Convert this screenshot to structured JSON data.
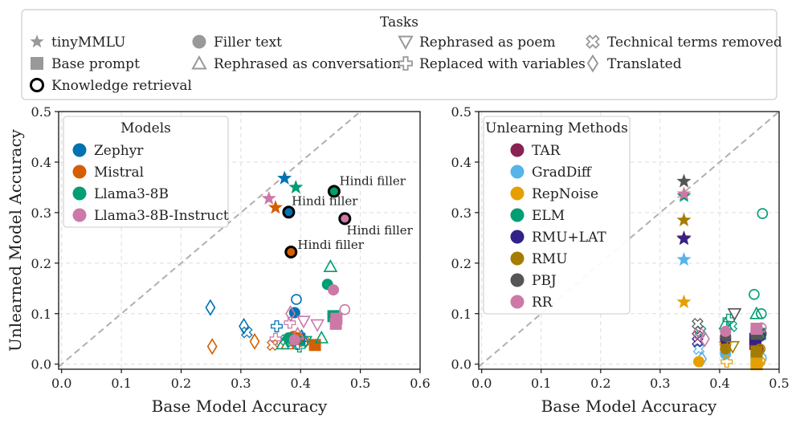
{
  "tasks_legend": {
    "title": "Tasks",
    "items": [
      {
        "label": "tinyMMLU",
        "marker": "star"
      },
      {
        "label": "Base prompt",
        "marker": "square"
      },
      {
        "label": "Knowledge retrieval",
        "marker": "ring"
      },
      {
        "label": "Filler text",
        "marker": "circle"
      },
      {
        "label": "Rephrased as conversation",
        "marker": "triangle-up"
      },
      {
        "label": "Rephrased as poem",
        "marker": "triangle-down"
      },
      {
        "label": "Replaced with variables",
        "marker": "plus"
      },
      {
        "label": "Technical terms removed",
        "marker": "x"
      },
      {
        "label": "Translated",
        "marker": "diamond"
      }
    ]
  },
  "chart_data": [
    {
      "type": "scatter",
      "xlabel": "Base Model Accuracy",
      "ylabel": "Unlearned Model Accuracy",
      "xlim": [
        -0.005,
        0.6
      ],
      "ylim": [
        -0.01,
        0.5
      ],
      "xticks": [
        "0.0",
        "0.1",
        "0.2",
        "0.3",
        "0.4",
        "0.5",
        "0.6"
      ],
      "yticks": [
        "0.0",
        "0.1",
        "0.2",
        "0.3",
        "0.4",
        "0.5"
      ],
      "grid": true,
      "diagonal": true,
      "legend": {
        "title": "Models",
        "position": "top-left",
        "items": [
          {
            "name": "Zephyr",
            "color": "#0072b2"
          },
          {
            "name": "Mistral",
            "color": "#d55e00"
          },
          {
            "name": "Llama3-8B",
            "color": "#009e73"
          },
          {
            "name": "Llama3-8B-Instruct",
            "color": "#cc79a7"
          }
        ]
      },
      "annotations": [
        {
          "text": "Hindi filler",
          "x": 0.465,
          "y": 0.355
        },
        {
          "text": "Hindi filler",
          "x": 0.385,
          "y": 0.315
        },
        {
          "text": "Hindi filler",
          "x": 0.477,
          "y": 0.257
        },
        {
          "text": "Hindi filler",
          "x": 0.395,
          "y": 0.228
        }
      ],
      "series": [
        {
          "name": "Zephyr",
          "color": "#0072b2",
          "points": [
            {
              "x": 0.373,
              "y": 0.368,
              "m": "star"
            },
            {
              "x": 0.38,
              "y": 0.301,
              "m": "ring"
            },
            {
              "x": 0.39,
              "y": 0.102,
              "m": "circle"
            },
            {
              "x": 0.393,
              "y": 0.128,
              "m": "circle-open"
            },
            {
              "x": 0.249,
              "y": 0.112,
              "m": "diamond"
            },
            {
              "x": 0.305,
              "y": 0.075,
              "m": "diamond"
            },
            {
              "x": 0.31,
              "y": 0.063,
              "m": "x"
            },
            {
              "x": 0.36,
              "y": 0.075,
              "m": "plus"
            },
            {
              "x": 0.385,
              "y": 0.045,
              "m": "x"
            },
            {
              "x": 0.395,
              "y": 0.04,
              "m": "plus"
            },
            {
              "x": 0.402,
              "y": 0.055,
              "m": "triangle-up"
            },
            {
              "x": 0.398,
              "y": 0.05,
              "m": "square"
            }
          ]
        },
        {
          "name": "Mistral",
          "color": "#d55e00",
          "points": [
            {
              "x": 0.358,
              "y": 0.31,
              "m": "star"
            },
            {
              "x": 0.384,
              "y": 0.222,
              "m": "ring"
            },
            {
              "x": 0.252,
              "y": 0.035,
              "m": "diamond"
            },
            {
              "x": 0.323,
              "y": 0.045,
              "m": "diamond"
            },
            {
              "x": 0.353,
              "y": 0.038,
              "m": "x"
            },
            {
              "x": 0.378,
              "y": 0.04,
              "m": "triangle-up"
            },
            {
              "x": 0.388,
              "y": 0.055,
              "m": "circle"
            },
            {
              "x": 0.396,
              "y": 0.052,
              "m": "circle"
            },
            {
              "x": 0.405,
              "y": 0.045,
              "m": "x"
            },
            {
              "x": 0.424,
              "y": 0.038,
              "m": "square"
            }
          ]
        },
        {
          "name": "Llama3-8B",
          "color": "#009e73",
          "points": [
            {
              "x": 0.392,
              "y": 0.35,
              "m": "star"
            },
            {
              "x": 0.456,
              "y": 0.342,
              "m": "ring"
            },
            {
              "x": 0.45,
              "y": 0.193,
              "m": "triangle-up"
            },
            {
              "x": 0.445,
              "y": 0.158,
              "m": "circle"
            },
            {
              "x": 0.455,
              "y": 0.095,
              "m": "square"
            },
            {
              "x": 0.435,
              "y": 0.052,
              "m": "triangle-up"
            },
            {
              "x": 0.38,
              "y": 0.052,
              "m": "circle"
            },
            {
              "x": 0.37,
              "y": 0.04,
              "m": "triangle-up"
            },
            {
              "x": 0.375,
              "y": 0.048,
              "m": "x"
            },
            {
              "x": 0.398,
              "y": 0.035,
              "m": "plus"
            },
            {
              "x": 0.408,
              "y": 0.045,
              "m": "triangle-down"
            }
          ]
        },
        {
          "name": "Llama3-8B-Instruct",
          "color": "#cc79a7",
          "points": [
            {
              "x": 0.347,
              "y": 0.328,
              "m": "star"
            },
            {
              "x": 0.474,
              "y": 0.288,
              "m": "ring"
            },
            {
              "x": 0.455,
              "y": 0.147,
              "m": "circle"
            },
            {
              "x": 0.474,
              "y": 0.108,
              "m": "circle-open"
            },
            {
              "x": 0.459,
              "y": 0.08,
              "m": "square"
            },
            {
              "x": 0.46,
              "y": 0.09,
              "m": "square"
            },
            {
              "x": 0.383,
              "y": 0.1,
              "m": "diamond"
            },
            {
              "x": 0.405,
              "y": 0.085,
              "m": "triangle-down"
            },
            {
              "x": 0.428,
              "y": 0.078,
              "m": "triangle-down"
            },
            {
              "x": 0.382,
              "y": 0.082,
              "m": "plus"
            },
            {
              "x": 0.395,
              "y": 0.06,
              "m": "triangle-up"
            },
            {
              "x": 0.39,
              "y": 0.048,
              "m": "circle"
            },
            {
              "x": 0.358,
              "y": 0.05,
              "m": "plus"
            }
          ]
        }
      ]
    },
    {
      "type": "scatter",
      "xlabel": "Base Model Accuracy",
      "ylabel": "",
      "xlim": [
        -0.005,
        0.5
      ],
      "ylim": [
        -0.01,
        0.5
      ],
      "xticks": [
        "0.0",
        "0.1",
        "0.2",
        "0.3",
        "0.4",
        "0.5"
      ],
      "yticks": [
        "0.0",
        "0.1",
        "0.2",
        "0.3",
        "0.4",
        "0.5"
      ],
      "grid": true,
      "diagonal": true,
      "legend": {
        "title": "Unlearning Methods",
        "position": "top-left",
        "items": [
          {
            "name": "TAR",
            "color": "#882255"
          },
          {
            "name": "GradDiff",
            "color": "#56b4e9"
          },
          {
            "name": "RepNoise",
            "color": "#e69f00"
          },
          {
            "name": "ELM",
            "color": "#009e73"
          },
          {
            "name": "RMU+LAT",
            "color": "#332288"
          },
          {
            "name": "RMU",
            "color": "#a67c00"
          },
          {
            "name": "PBJ",
            "color": "#555555"
          },
          {
            "name": "RR",
            "color": "#cc79a7"
          }
        ]
      },
      "series": [
        {
          "name": "TAR",
          "color": "#882255",
          "points": [
            {
              "x": 0.34,
              "y": 0.25,
              "m": "star"
            },
            {
              "x": 0.41,
              "y": 0.04,
              "m": "circle"
            },
            {
              "x": 0.46,
              "y": 0.04,
              "m": "square"
            },
            {
              "x": 0.465,
              "y": 0.03,
              "m": "circle-open"
            },
            {
              "x": 0.363,
              "y": 0.055,
              "m": "x"
            }
          ]
        },
        {
          "name": "GradDiff",
          "color": "#56b4e9",
          "points": [
            {
              "x": 0.34,
              "y": 0.207,
              "m": "star"
            },
            {
              "x": 0.41,
              "y": 0.02,
              "m": "circle"
            },
            {
              "x": 0.462,
              "y": 0.015,
              "m": "square"
            },
            {
              "x": 0.47,
              "y": 0.012,
              "m": "circle-open"
            },
            {
              "x": 0.365,
              "y": 0.03,
              "m": "x"
            },
            {
              "x": 0.37,
              "y": 0.01,
              "m": "diamond"
            }
          ]
        },
        {
          "name": "RepNoise",
          "color": "#e69f00",
          "points": [
            {
              "x": 0.34,
              "y": 0.123,
              "m": "star"
            },
            {
              "x": 0.41,
              "y": 0.035,
              "m": "triangle-down"
            },
            {
              "x": 0.412,
              "y": 0.005,
              "m": "plus"
            },
            {
              "x": 0.462,
              "y": 0.0,
              "m": "square"
            },
            {
              "x": 0.463,
              "y": 0.01,
              "m": "triangle-up"
            },
            {
              "x": 0.365,
              "y": 0.005,
              "m": "circle"
            },
            {
              "x": 0.468,
              "y": 0.005,
              "m": "circle-open"
            }
          ]
        },
        {
          "name": "ELM",
          "color": "#009e73",
          "points": [
            {
              "x": 0.34,
              "y": 0.333,
              "m": "star"
            },
            {
              "x": 0.472,
              "y": 0.298,
              "m": "circle-open"
            },
            {
              "x": 0.458,
              "y": 0.138,
              "m": "circle-open"
            },
            {
              "x": 0.462,
              "y": 0.1,
              "m": "triangle-up"
            },
            {
              "x": 0.47,
              "y": 0.1,
              "m": "circle-open"
            },
            {
              "x": 0.41,
              "y": 0.08,
              "m": "triangle-up"
            },
            {
              "x": 0.415,
              "y": 0.088,
              "m": "plus"
            },
            {
              "x": 0.42,
              "y": 0.075,
              "m": "x"
            },
            {
              "x": 0.368,
              "y": 0.065,
              "m": "x"
            },
            {
              "x": 0.468,
              "y": 0.06,
              "m": "square"
            }
          ]
        },
        {
          "name": "RMU+LAT",
          "color": "#332288",
          "points": [
            {
              "x": 0.34,
              "y": 0.248,
              "m": "star"
            },
            {
              "x": 0.41,
              "y": 0.05,
              "m": "circle"
            },
            {
              "x": 0.46,
              "y": 0.05,
              "m": "square"
            },
            {
              "x": 0.468,
              "y": 0.055,
              "m": "circle-open"
            },
            {
              "x": 0.363,
              "y": 0.045,
              "m": "x"
            }
          ]
        },
        {
          "name": "RMU",
          "color": "#a67c00",
          "points": [
            {
              "x": 0.34,
              "y": 0.285,
              "m": "star"
            },
            {
              "x": 0.41,
              "y": 0.03,
              "m": "circle"
            },
            {
              "x": 0.462,
              "y": 0.025,
              "m": "square"
            },
            {
              "x": 0.468,
              "y": 0.03,
              "m": "circle-open"
            },
            {
              "x": 0.422,
              "y": 0.035,
              "m": "triangle-down"
            }
          ]
        },
        {
          "name": "PBJ",
          "color": "#555555",
          "points": [
            {
              "x": 0.34,
              "y": 0.362,
              "m": "star"
            },
            {
              "x": 0.425,
              "y": 0.1,
              "m": "triangle-down"
            },
            {
              "x": 0.363,
              "y": 0.08,
              "m": "x"
            },
            {
              "x": 0.41,
              "y": 0.055,
              "m": "circle"
            },
            {
              "x": 0.462,
              "y": 0.06,
              "m": "square"
            },
            {
              "x": 0.47,
              "y": 0.06,
              "m": "circle-open"
            }
          ]
        },
        {
          "name": "RR",
          "color": "#cc79a7",
          "points": [
            {
              "x": 0.34,
              "y": 0.337,
              "m": "star"
            },
            {
              "x": 0.462,
              "y": 0.07,
              "m": "square"
            },
            {
              "x": 0.47,
              "y": 0.072,
              "m": "circle-open"
            },
            {
              "x": 0.41,
              "y": 0.065,
              "m": "circle"
            },
            {
              "x": 0.365,
              "y": 0.06,
              "m": "x"
            },
            {
              "x": 0.375,
              "y": 0.05,
              "m": "diamond"
            }
          ]
        }
      ]
    }
  ]
}
